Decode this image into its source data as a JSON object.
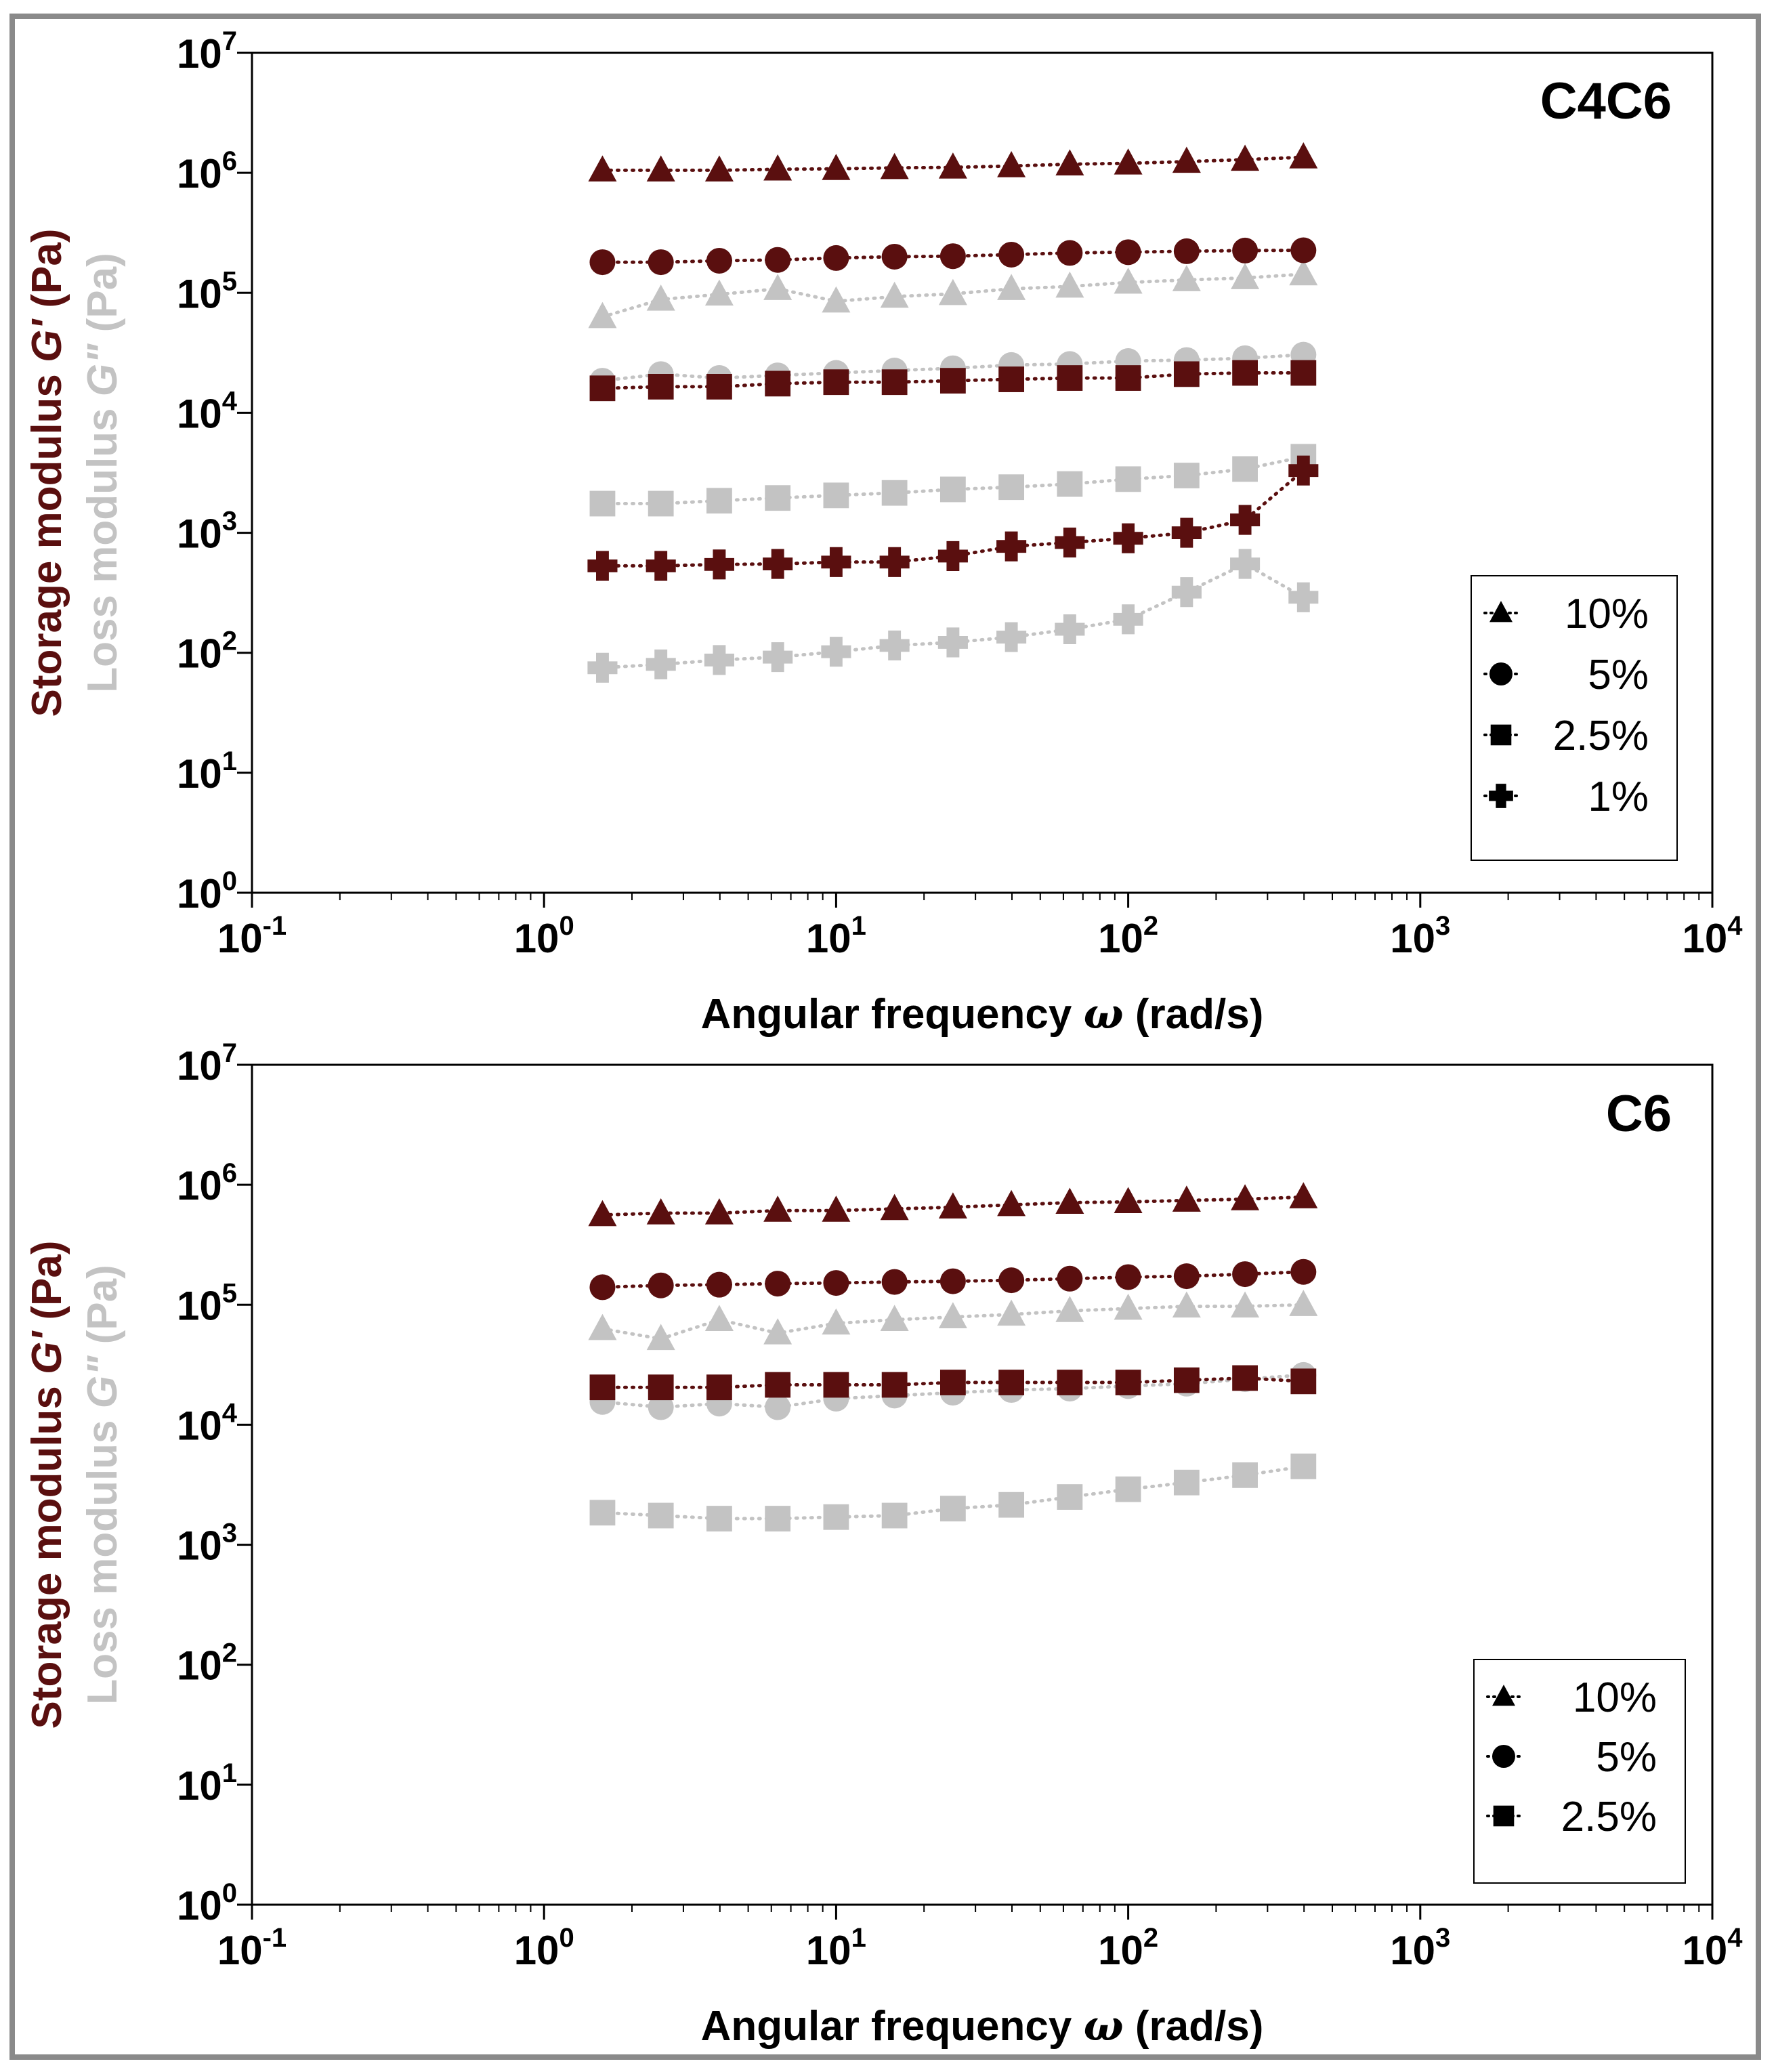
{
  "colors": {
    "storage": "#5a0f0f",
    "loss": "#c3c3c3",
    "axis": "#000000",
    "frame": "#8a8a8a"
  },
  "chart_data": [
    {
      "type": "scatter",
      "title": "C4C6",
      "xlabel": "Angular frequency",
      "xsymbol": "ω",
      "xunit": "(rad/s)",
      "ylabel_storage": "Storage modulus",
      "ylabel_storage_symbol": "G'",
      "ylabel_storage_unit": "(Pa)",
      "ylabel_loss": "Loss modulus",
      "ylabel_loss_symbol": "G\"",
      "ylabel_loss_unit": "(Pa)",
      "xscale": "log",
      "yscale": "log",
      "xlim": [
        0.1,
        10000
      ],
      "ylim": [
        1,
        10000000
      ],
      "x_ticks_exp": [
        -1,
        0,
        1,
        2,
        3,
        4
      ],
      "y_ticks_exp": [
        0,
        1,
        2,
        3,
        4,
        5,
        6,
        7
      ],
      "legend_position": "right",
      "legend": [
        {
          "marker": "triangle",
          "label": "10%"
        },
        {
          "marker": "circle",
          "label": "5%"
        },
        {
          "marker": "square",
          "label": "2.5%"
        },
        {
          "marker": "cross",
          "label": "1%"
        }
      ],
      "x": [
        1.585,
        2.512,
        3.981,
        6.31,
        10,
        15.85,
        25.12,
        39.81,
        63.1,
        100,
        158.5,
        251.2,
        398.1
      ],
      "series": [
        {
          "name": "10% G'",
          "modulus": "storage",
          "marker": "triangle",
          "values": [
            1050000,
            1050000,
            1050000,
            1070000,
            1080000,
            1100000,
            1110000,
            1140000,
            1180000,
            1200000,
            1240000,
            1290000,
            1350000
          ]
        },
        {
          "name": "10% G\"",
          "modulus": "loss",
          "marker": "triangle",
          "values": [
            63000,
            88000,
            97000,
            108000,
            85000,
            93000,
            98000,
            108000,
            113000,
            122000,
            128000,
            133000,
            143000
          ]
        },
        {
          "name": "5% G'",
          "modulus": "storage",
          "marker": "circle",
          "values": [
            180000,
            180000,
            185000,
            188000,
            195000,
            200000,
            202000,
            208000,
            215000,
            218000,
            222000,
            225000,
            226000
          ]
        },
        {
          "name": "5% G\"",
          "modulus": "loss",
          "marker": "circle",
          "values": [
            18500,
            21000,
            19500,
            20500,
            21500,
            22500,
            23500,
            25000,
            25500,
            27000,
            27500,
            28500,
            30500
          ]
        },
        {
          "name": "2.5% G'",
          "modulus": "storage",
          "marker": "square",
          "values": [
            16000,
            16500,
            16500,
            17500,
            18000,
            18000,
            18500,
            19000,
            19500,
            19500,
            21000,
            21500,
            21500
          ]
        },
        {
          "name": "2.5% G\"",
          "modulus": "loss",
          "marker": "square",
          "values": [
            1750,
            1750,
            1850,
            1950,
            2050,
            2150,
            2300,
            2400,
            2550,
            2800,
            3000,
            3400,
            4300
          ]
        },
        {
          "name": "1% G'",
          "modulus": "storage",
          "marker": "cross",
          "values": [
            530,
            530,
            545,
            550,
            570,
            570,
            640,
            770,
            830,
            900,
            1000,
            1280,
            3300
          ]
        },
        {
          "name": "1% G\"",
          "modulus": "loss",
          "marker": "cross",
          "values": [
            75,
            80,
            87,
            92,
            102,
            115,
            122,
            135,
            157,
            190,
            320,
            550,
            290
          ]
        }
      ]
    },
    {
      "type": "scatter",
      "title": "C6",
      "xlabel": "Angular frequency",
      "xsymbol": "ω",
      "xunit": "(rad/s)",
      "ylabel_storage": "Storage modulus",
      "ylabel_storage_symbol": "G'",
      "ylabel_storage_unit": "(Pa)",
      "ylabel_loss": "Loss modulus",
      "ylabel_loss_symbol": "G\"",
      "ylabel_loss_unit": "(Pa)",
      "xscale": "log",
      "yscale": "log",
      "xlim": [
        0.1,
        10000
      ],
      "ylim": [
        1,
        10000000
      ],
      "x_ticks_exp": [
        -1,
        0,
        1,
        2,
        3,
        4
      ],
      "y_ticks_exp": [
        0,
        1,
        2,
        3,
        4,
        5,
        6,
        7
      ],
      "legend_position": "bottom-right",
      "legend": [
        {
          "marker": "triangle",
          "label": "10%"
        },
        {
          "marker": "circle",
          "label": "5%"
        },
        {
          "marker": "square",
          "label": "2.5%"
        }
      ],
      "x": [
        1.585,
        2.512,
        3.981,
        6.31,
        10,
        15.85,
        25.12,
        39.81,
        63.1,
        100,
        158.5,
        251.2,
        398.1
      ],
      "series": [
        {
          "name": "10% G'",
          "modulus": "storage",
          "marker": "triangle",
          "values": [
            560000,
            580000,
            580000,
            610000,
            610000,
            630000,
            650000,
            680000,
            710000,
            720000,
            740000,
            760000,
            790000
          ]
        },
        {
          "name": "10% G\"",
          "modulus": "loss",
          "marker": "triangle",
          "values": [
            63000,
            52000,
            75000,
            58000,
            70000,
            75000,
            79000,
            83000,
            89000,
            93000,
            97000,
            97000,
            100000
          ]
        },
        {
          "name": "5% G'",
          "modulus": "storage",
          "marker": "circle",
          "values": [
            140000,
            145000,
            147000,
            150000,
            152000,
            155000,
            157000,
            160000,
            165000,
            170000,
            173000,
            180000,
            188000
          ]
        },
        {
          "name": "5% G\"",
          "modulus": "loss",
          "marker": "circle",
          "values": [
            15500,
            14000,
            15000,
            14000,
            16500,
            17500,
            18500,
            19500,
            20000,
            21000,
            22000,
            24000,
            26000
          ]
        },
        {
          "name": "2.5% G'",
          "modulus": "storage",
          "marker": "square",
          "values": [
            20500,
            20500,
            20500,
            21500,
            21500,
            21500,
            22500,
            22500,
            22500,
            22500,
            23500,
            24500,
            23000
          ]
        },
        {
          "name": "2.5% G\"",
          "modulus": "loss",
          "marker": "square",
          "values": [
            1850,
            1750,
            1650,
            1650,
            1700,
            1750,
            2000,
            2150,
            2500,
            2900,
            3300,
            3800,
            4500
          ]
        }
      ]
    }
  ]
}
